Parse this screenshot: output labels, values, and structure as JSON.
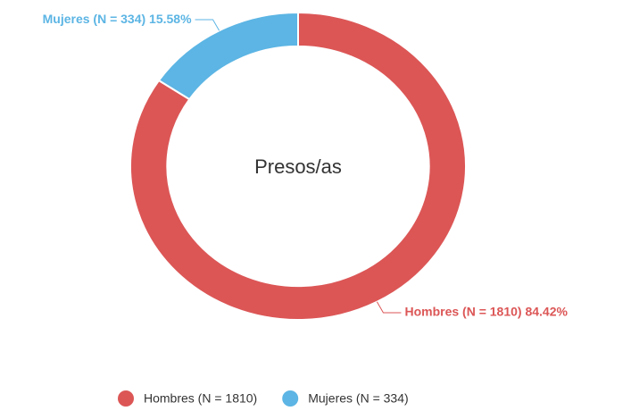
{
  "chart_data": {
    "type": "donut",
    "center_label": "Presos/as",
    "categories": [
      "Hombres (N = 1810)",
      "Mujeres (N = 334)"
    ],
    "values": [
      84.42,
      15.58
    ],
    "value_labels": [
      "Hombres (N = 1810) 84.42%",
      "Mujeres (N = 334) 15.58%"
    ],
    "colors": [
      "#dc5656",
      "#5cb5e4"
    ],
    "legend": "bottom"
  }
}
